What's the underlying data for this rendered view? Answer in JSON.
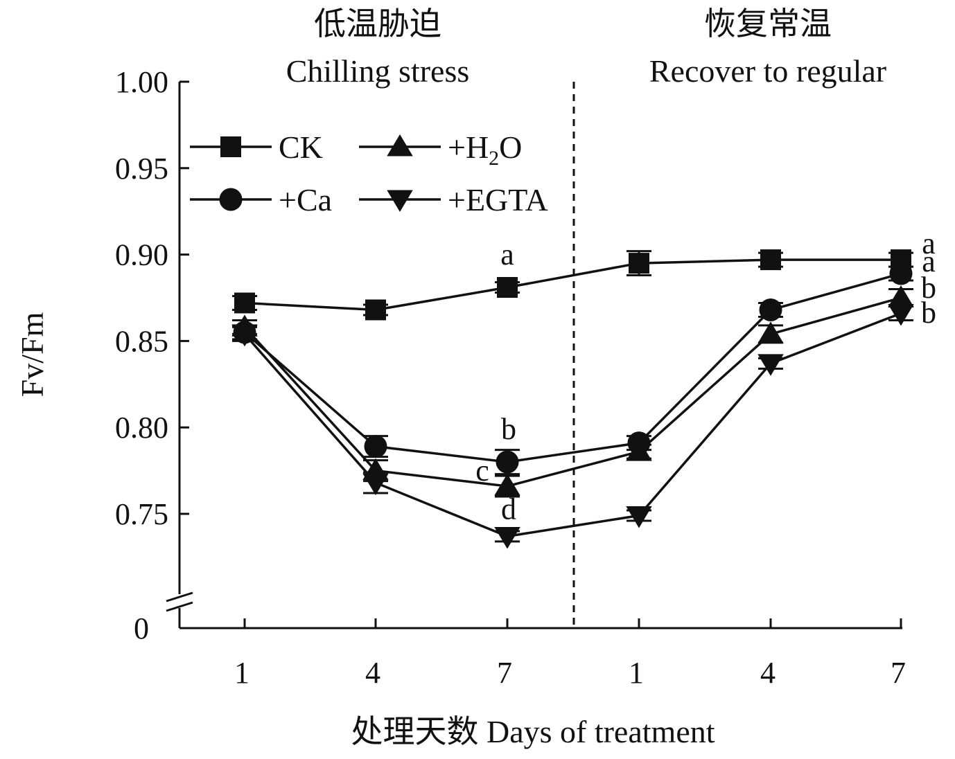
{
  "chart_data": {
    "type": "line",
    "ylabel": "Fv/Fm",
    "xlabel": "处理天数 Days of treatment",
    "ylim": [
      0.7,
      1.0
    ],
    "y_ticks": [
      "1.00",
      "0.95",
      "0.90",
      "0.85",
      "0.80",
      "0.75"
    ],
    "y_break_label": "0",
    "categories": [
      "1",
      "4",
      "7",
      "1",
      "4",
      "7"
    ],
    "phases": [
      {
        "cn": "低温胁迫",
        "en": "Chilling stress"
      },
      {
        "cn": "恢复常温",
        "en": "Recover to regular"
      }
    ],
    "series": [
      {
        "name": "CK",
        "marker": "square",
        "values": [
          0.872,
          0.868,
          0.881,
          0.895,
          0.897,
          0.897
        ],
        "errors": [
          0.004,
          0.003,
          0.003,
          0.007,
          0.004,
          0.004
        ]
      },
      {
        "name": "+Ca",
        "marker": "circle",
        "values": [
          0.855,
          0.789,
          0.78,
          0.791,
          0.868,
          0.889
        ],
        "errors": [
          0.004,
          0.006,
          0.007,
          0.004,
          0.004,
          0.004
        ]
      },
      {
        "name": "+H₂O",
        "marker": "triangle-up",
        "values": [
          0.858,
          0.775,
          0.766,
          0.786,
          0.854,
          0.875
        ],
        "errors": [
          0.004,
          0.006,
          0.006,
          0.004,
          0.005,
          0.005
        ]
      },
      {
        "name": "+EGTA",
        "marker": "triangle-down",
        "values": [
          0.854,
          0.768,
          0.737,
          0.749,
          0.837,
          0.866
        ],
        "errors": [
          0.004,
          0.006,
          0.003,
          0.003,
          0.003,
          0.004
        ]
      }
    ],
    "annotations": [
      {
        "series": "CK",
        "index": 2,
        "text": "a"
      },
      {
        "series": "+Ca",
        "index": 2,
        "text": "b"
      },
      {
        "series": "+H₂O",
        "index": 2,
        "text": "c"
      },
      {
        "series": "+EGTA",
        "index": 2,
        "text": "d"
      },
      {
        "series": "CK",
        "index": 5,
        "text": "a"
      },
      {
        "series": "+Ca",
        "index": 5,
        "text": "a"
      },
      {
        "series": "+H₂O",
        "index": 5,
        "text": "b"
      },
      {
        "series": "+EGTA",
        "index": 5,
        "text": "b"
      }
    ],
    "grid": false,
    "legend_position": "top-left",
    "colors": {
      "line": "#111111",
      "marker": "#111111",
      "background": "#ffffff"
    }
  }
}
